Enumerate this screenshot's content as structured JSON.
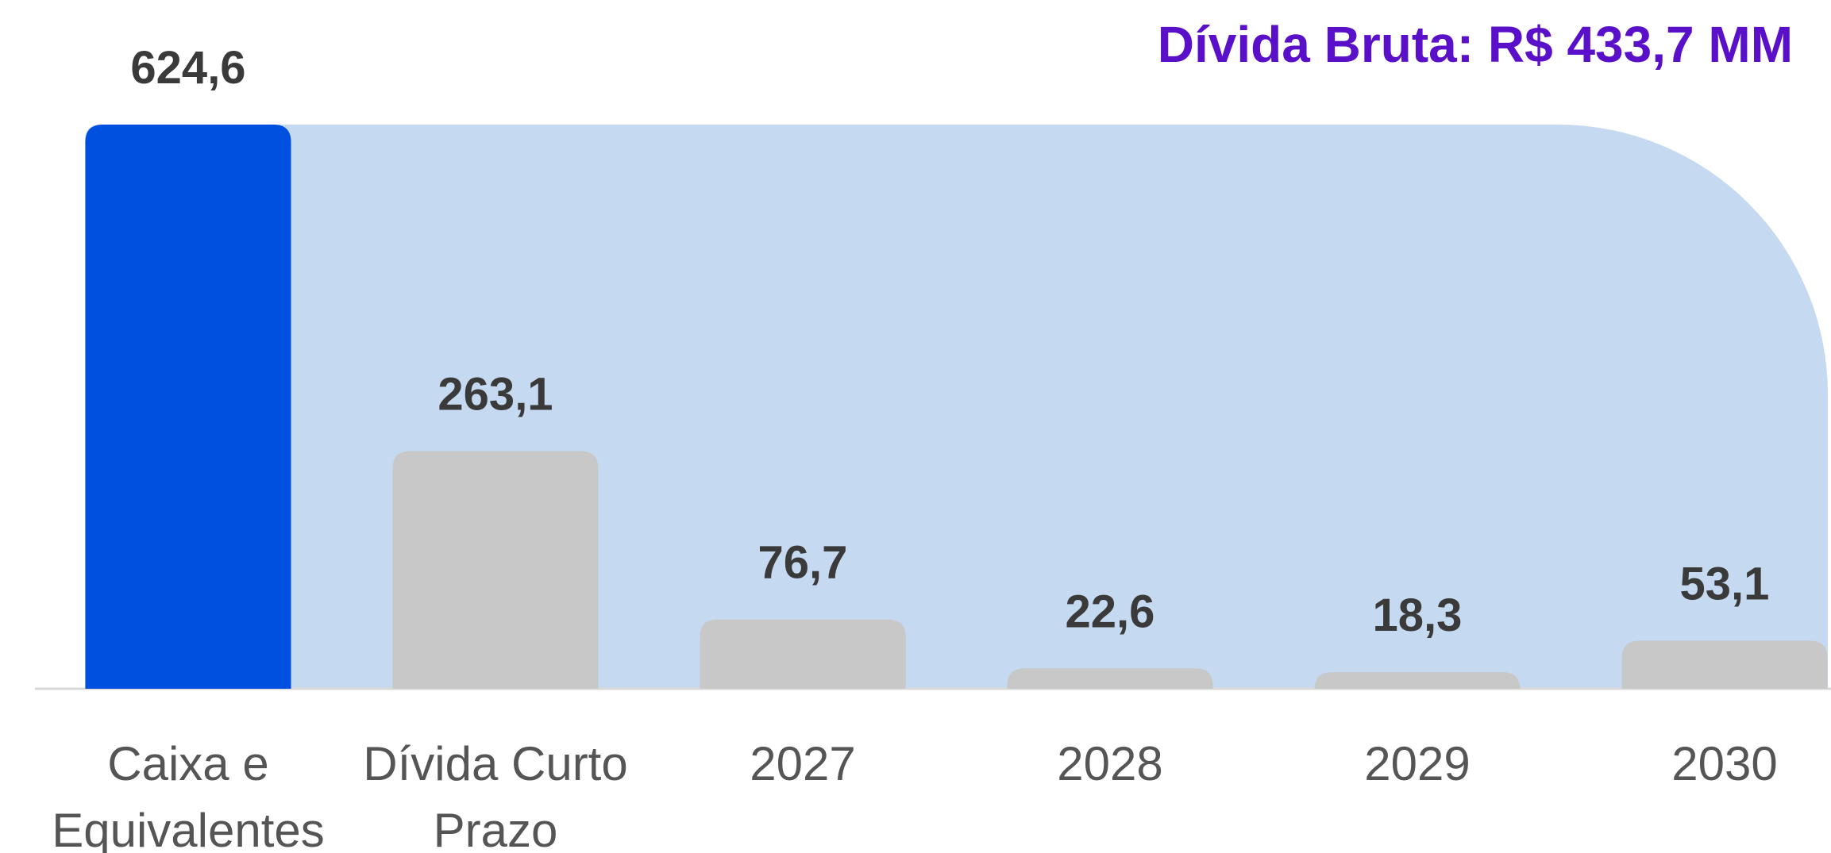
{
  "chart_data": {
    "type": "bar",
    "title": "Dívida Bruta: R$ 433,7 MM",
    "categories": [
      "Caixa e Equivalentes",
      "Dívida Curto Prazo",
      "2027",
      "2028",
      "2029",
      "2030"
    ],
    "values": [
      624.6,
      263.1,
      76.7,
      22.6,
      18.3,
      53.1
    ],
    "value_labels": [
      "624,6",
      "263,1",
      "76,7",
      "22,6",
      "18,3",
      "53,1"
    ],
    "colors": [
      "#0050e0",
      "#c8c8c8",
      "#c8c8c8",
      "#c8c8c8",
      "#c8c8c8",
      "#c8c8c8"
    ],
    "background_color": "#c5d9f0"
  }
}
